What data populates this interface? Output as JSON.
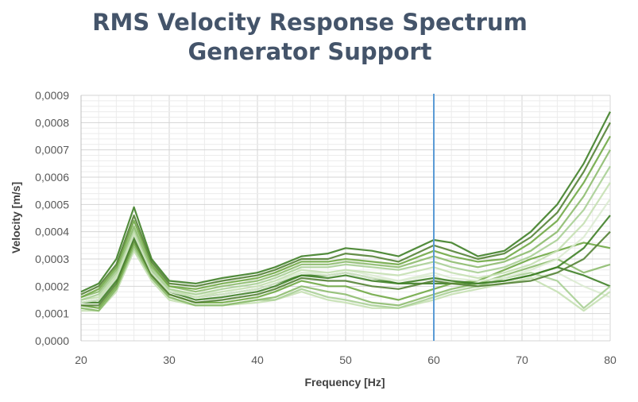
{
  "chart_data": {
    "type": "line",
    "title": "RMS Velocity Response Spectrum",
    "subtitle": "Generator Support",
    "xlabel": "Frequency [Hz]",
    "ylabel": "Velocity [m/s]",
    "xlim": [
      20,
      80
    ],
    "ylim": [
      0,
      0.0009
    ],
    "x_ticks": [
      "20",
      "30",
      "40",
      "50",
      "60",
      "70",
      "80"
    ],
    "y_ticks": [
      "0,0000",
      "0,0001",
      "0,0002",
      "0,0003",
      "0,0004",
      "0,0005",
      "0,0006",
      "0,0007",
      "0,0008",
      "0,0009"
    ],
    "grid": true,
    "legend": "none",
    "marker_line": {
      "x": 60,
      "color": "#5b9bd5"
    },
    "colors": [
      "#3f7f27",
      "#548235",
      "#70a845",
      "#8dbb6e",
      "#a9cf95",
      "#c5e0b3",
      "#dcebd2"
    ],
    "x": [
      20,
      22,
      24,
      26,
      28,
      30,
      33,
      36,
      40,
      42,
      45,
      48,
      50,
      53,
      56,
      60,
      62,
      65,
      68,
      71,
      74,
      77,
      80
    ],
    "series": [
      {
        "values": [
          0.00018,
          0.00021,
          0.0003,
          0.00049,
          0.0003,
          0.00022,
          0.00021,
          0.00023,
          0.00025,
          0.00027,
          0.00031,
          0.00032,
          0.00034,
          0.00033,
          0.00031,
          0.00037,
          0.00036,
          0.00031,
          0.00033,
          0.0004,
          0.0005,
          0.00065,
          0.00084
        ]
      },
      {
        "values": [
          0.00017,
          0.0002,
          0.00028,
          0.00046,
          0.00029,
          0.00021,
          0.0002,
          0.00022,
          0.00024,
          0.00026,
          0.0003,
          0.0003,
          0.00032,
          0.00031,
          0.00029,
          0.00035,
          0.00033,
          0.0003,
          0.00032,
          0.00038,
          0.00047,
          0.00062,
          0.0008
        ]
      },
      {
        "values": [
          0.00016,
          0.00019,
          0.00027,
          0.00044,
          0.00028,
          0.0002,
          0.00019,
          0.00021,
          0.00023,
          0.00025,
          0.00029,
          0.00029,
          0.0003,
          0.00029,
          0.00028,
          0.00033,
          0.00031,
          0.00029,
          0.0003,
          0.00036,
          0.00044,
          0.00058,
          0.00075
        ]
      },
      {
        "values": [
          0.00016,
          0.00018,
          0.00026,
          0.00042,
          0.00027,
          0.0002,
          0.00018,
          0.0002,
          0.00022,
          0.00024,
          0.00028,
          0.00028,
          0.00029,
          0.00028,
          0.00027,
          0.00031,
          0.00029,
          0.00027,
          0.00029,
          0.00033,
          0.0004,
          0.00053,
          0.0007
        ]
      },
      {
        "values": [
          0.00015,
          0.00017,
          0.00025,
          0.00041,
          0.00026,
          0.00019,
          0.00017,
          0.00019,
          0.00021,
          0.00023,
          0.00027,
          0.00027,
          0.00028,
          0.00027,
          0.00026,
          0.00029,
          0.00027,
          0.00025,
          0.00027,
          0.00031,
          0.00037,
          0.00048,
          0.00064
        ]
      },
      {
        "values": [
          0.00015,
          0.00016,
          0.00024,
          0.0004,
          0.00026,
          0.00019,
          0.00016,
          0.00018,
          0.0002,
          0.00022,
          0.00026,
          0.00025,
          0.00026,
          0.00025,
          0.00024,
          0.00027,
          0.00025,
          0.00023,
          0.00025,
          0.00028,
          0.00033,
          0.00043,
          0.00058
        ]
      },
      {
        "values": [
          0.00014,
          0.00015,
          0.00023,
          0.00039,
          0.00025,
          0.00018,
          0.00016,
          0.00017,
          0.00019,
          0.00021,
          0.00025,
          0.00024,
          0.00025,
          0.00023,
          0.00022,
          0.00025,
          0.00023,
          0.00022,
          0.00023,
          0.00026,
          0.0003,
          0.00038,
          0.00052
        ]
      },
      {
        "values": [
          0.00014,
          0.00014,
          0.00022,
          0.00038,
          0.00025,
          0.00018,
          0.00015,
          0.00016,
          0.00018,
          0.0002,
          0.00024,
          0.00023,
          0.00024,
          0.00022,
          0.00021,
          0.00023,
          0.00022,
          0.00021,
          0.00022,
          0.00024,
          0.00027,
          0.00034,
          0.00046
        ]
      },
      {
        "values": [
          0.00013,
          0.00013,
          0.00021,
          0.00037,
          0.00024,
          0.00017,
          0.00014,
          0.00015,
          0.00017,
          0.00019,
          0.00023,
          0.00022,
          0.00022,
          0.0002,
          0.00019,
          0.00022,
          0.00021,
          0.0002,
          0.00021,
          0.00022,
          0.00025,
          0.0003,
          0.0004
        ]
      },
      {
        "values": [
          0.00013,
          0.00012,
          0.0002,
          0.00036,
          0.00024,
          0.00017,
          0.00014,
          0.00014,
          0.00016,
          0.00018,
          0.00022,
          0.0002,
          0.0002,
          0.00017,
          0.00015,
          0.00019,
          0.00021,
          0.00022,
          0.00026,
          0.0003,
          0.00033,
          0.00036,
          0.00034
        ]
      },
      {
        "values": [
          0.00012,
          0.00011,
          0.00019,
          0.00035,
          0.00023,
          0.00016,
          0.00013,
          0.00013,
          0.00015,
          0.00016,
          0.0002,
          0.00018,
          0.00017,
          0.00014,
          0.00013,
          0.00017,
          0.00019,
          0.00021,
          0.00024,
          0.00027,
          0.0003,
          0.00025,
          0.00028
        ]
      },
      {
        "values": [
          0.00012,
          0.00011,
          0.00019,
          0.00034,
          0.00023,
          0.00016,
          0.00013,
          0.00013,
          0.00015,
          0.00015,
          0.00019,
          0.00016,
          0.00015,
          0.00013,
          0.00012,
          0.00016,
          0.00018,
          0.0002,
          0.00023,
          0.00025,
          0.00022,
          0.00012,
          0.0002
        ]
      },
      {
        "values": [
          0.00011,
          0.00011,
          0.00018,
          0.00033,
          0.00022,
          0.00015,
          0.00013,
          0.00013,
          0.00014,
          0.00015,
          0.00018,
          0.00015,
          0.00014,
          0.00012,
          0.00012,
          0.00015,
          0.00017,
          0.00019,
          0.00021,
          0.00023,
          0.00018,
          0.00011,
          0.00018
        ]
      },
      {
        "values": [
          0.00015,
          0.00016,
          0.00024,
          0.0004,
          0.00026,
          0.00019,
          0.00017,
          0.00018,
          0.0002,
          0.00022,
          0.00025,
          0.00025,
          0.00026,
          0.00024,
          0.00022,
          0.00024,
          0.00021,
          0.0002,
          0.00021,
          0.00023,
          0.00025,
          0.0002,
          0.00016
        ]
      },
      {
        "values": [
          0.00014,
          0.00015,
          0.00023,
          0.00039,
          0.00025,
          0.00018,
          0.00016,
          0.00017,
          0.00019,
          0.00021,
          0.00024,
          0.00024,
          0.00025,
          0.00023,
          0.00021,
          0.00021,
          0.00021,
          0.00021,
          0.00022,
          0.00024,
          0.00027,
          0.00024,
          0.0002
        ]
      }
    ]
  }
}
